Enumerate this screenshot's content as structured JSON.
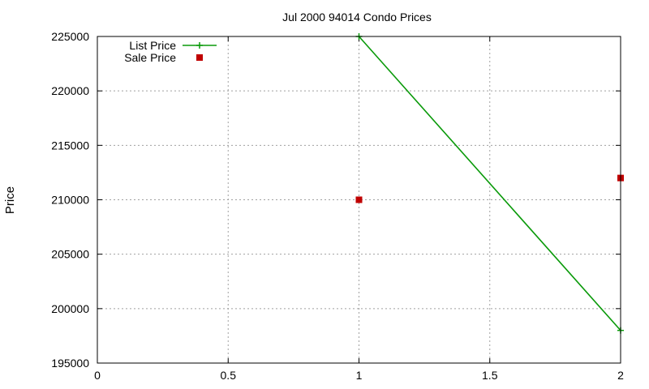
{
  "chart_data": {
    "type": "line",
    "title": "Jul 2000 94014 Condo Prices",
    "xlabel": "",
    "ylabel": "Price",
    "xlim": [
      0,
      2
    ],
    "ylim": [
      195000,
      225000
    ],
    "x_ticks": [
      "0",
      "0.5",
      "1",
      "1.5",
      "2"
    ],
    "y_ticks": [
      "195000",
      "200000",
      "205000",
      "210000",
      "215000",
      "220000",
      "225000"
    ],
    "grid": true,
    "legend_position": "top-left",
    "series": [
      {
        "name": "List Price",
        "style": "line+points",
        "color": "#0a9a0a",
        "x": [
          1,
          2
        ],
        "y": [
          225000,
          198000
        ]
      },
      {
        "name": "Sale Price",
        "style": "points",
        "color": "#c00000",
        "x": [
          1,
          2
        ],
        "y": [
          210000,
          212000
        ]
      }
    ]
  }
}
